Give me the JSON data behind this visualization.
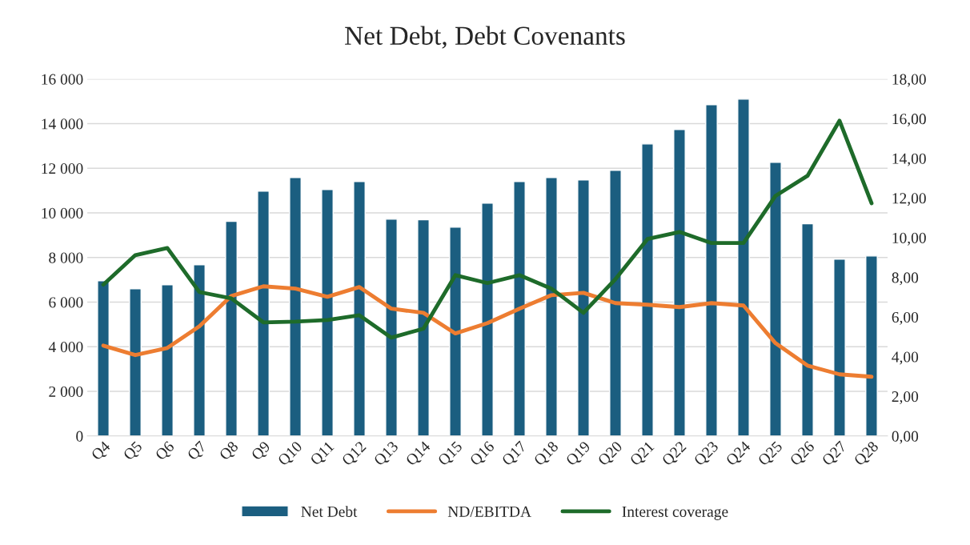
{
  "chart_data": {
    "type": "bar",
    "title": "Net Debt, Debt Covenants",
    "categories": [
      "Q4",
      "Q5",
      "Q6",
      "Q7",
      "Q8",
      "Q9",
      "Q10",
      "Q11",
      "Q12",
      "Q13",
      "Q14",
      "Q15",
      "Q16",
      "Q17",
      "Q18",
      "Q19",
      "Q20",
      "Q21",
      "Q22",
      "Q23",
      "Q24",
      "Q25",
      "Q26",
      "Q27",
      "Q28"
    ],
    "series": [
      {
        "name": "Net Debt",
        "color": "#1b5e80",
        "values": [
          6960,
          6600,
          6780,
          7680,
          9620,
          10980,
          11590,
          11050,
          11410,
          9720,
          9690,
          9360,
          10440,
          11410,
          11590,
          11480,
          11910,
          13090,
          13740,
          14850,
          15100,
          12270,
          9510,
          7930,
          8070
        ]
      },
      {
        "name": "ND/EBITDA",
        "type": "line",
        "axis": "y2",
        "color": "#ed7d31",
        "values": [
          4.56,
          4.08,
          4.44,
          5.53,
          7.06,
          7.55,
          7.43,
          7.02,
          7.51,
          6.42,
          6.21,
          5.17,
          5.69,
          6.42,
          7.1,
          7.22,
          6.7,
          6.62,
          6.5,
          6.7,
          6.58,
          4.68,
          3.55,
          3.11,
          2.99
        ]
      },
      {
        "name": "Interest coverage",
        "type": "line",
        "axis": "y2",
        "color": "#1e6b2a",
        "values": [
          7.63,
          9.12,
          9.48,
          7.26,
          6.94,
          5.73,
          5.77,
          5.85,
          6.09,
          4.96,
          5.41,
          8.11,
          7.71,
          8.11,
          7.43,
          6.21,
          7.91,
          9.93,
          10.29,
          9.73,
          9.73,
          12.11,
          13.12,
          15.9,
          11.74
        ]
      }
    ],
    "ylim": [
      0,
      16000
    ],
    "yticks": [
      0,
      {
        "value": 2000,
        "label": "2 000"
      },
      {
        "value": 4000,
        "label": "4 000"
      },
      {
        "value": 6000,
        "label": "6 000"
      },
      {
        "value": 8000,
        "label": "8 000"
      },
      {
        "value": 10000,
        "label": "10 000"
      },
      {
        "value": 12000,
        "label": "12 000"
      },
      {
        "value": 14000,
        "label": "14 000"
      },
      {
        "value": 16000,
        "label": "16 000"
      }
    ],
    "y2lim": [
      0,
      18
    ],
    "y2ticks": [
      {
        "value": 0,
        "label": "0,00"
      },
      {
        "value": 2,
        "label": "2,00"
      },
      {
        "value": 4,
        "label": "4,00"
      },
      {
        "value": 6,
        "label": "6,00"
      },
      {
        "value": 8,
        "label": "8,00"
      },
      {
        "value": 10,
        "label": "10,00"
      },
      {
        "value": 12,
        "label": "12,00"
      },
      {
        "value": 14,
        "label": "14,00"
      },
      {
        "value": 16,
        "label": "16,00"
      },
      {
        "value": 18,
        "label": "18,00"
      }
    ],
    "grid": "y",
    "legend": "bottom",
    "marker": "none",
    "line_style": "solid"
  }
}
